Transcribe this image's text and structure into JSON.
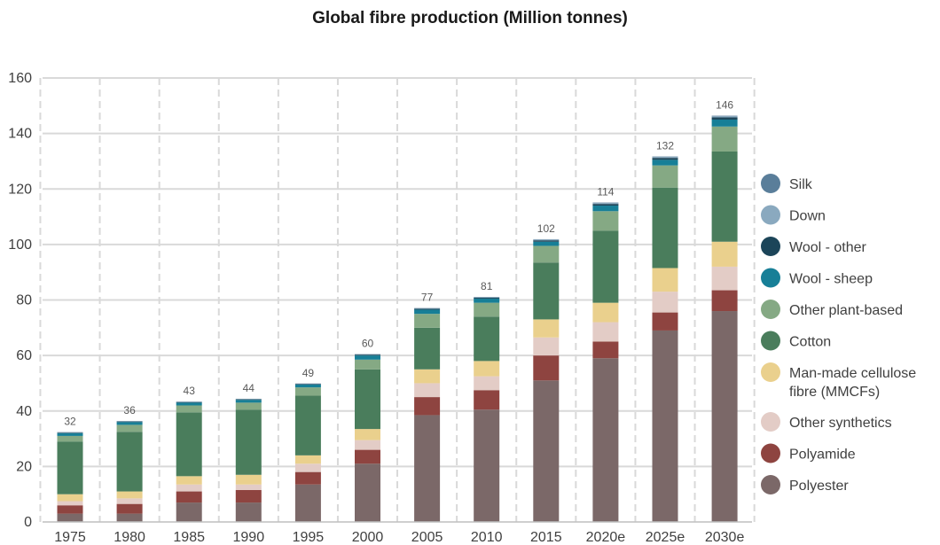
{
  "chart_data": {
    "type": "bar",
    "stacked": true,
    "title": "Global fibre production (Million tonnes)",
    "xlabel": "",
    "ylabel": "",
    "ylim": [
      0,
      160
    ],
    "yticks": [
      "0",
      "20",
      "40",
      "60",
      "80",
      "100",
      "120",
      "140",
      "160"
    ],
    "grid": true,
    "legend_position": "right",
    "categories": [
      "1975",
      "1980",
      "1985",
      "1990",
      "1995",
      "2000",
      "2005",
      "2010",
      "2015",
      "2020e",
      "2025e",
      "2030e"
    ],
    "totals": [
      "32",
      "36",
      "43",
      "44",
      "49",
      "60",
      "77",
      "81",
      "102",
      "114",
      "132",
      "146"
    ],
    "series": [
      {
        "name": "Polyester",
        "color": "#7b6868",
        "values": [
          3,
          3,
          7,
          7,
          13.5,
          21,
          38.5,
          40.5,
          51,
          59,
          69,
          76
        ]
      },
      {
        "name": "Polyamide",
        "color": "#8e4440",
        "values": [
          3,
          3.5,
          4,
          4.5,
          4.5,
          5,
          6.5,
          7,
          9,
          6,
          6.5,
          7.5
        ]
      },
      {
        "name": "Other synthetics",
        "color": "#e3ccc6",
        "values": [
          1.5,
          2,
          2.5,
          2,
          3,
          3.5,
          5,
          5,
          6.5,
          7,
          7.5,
          8.5
        ]
      },
      {
        "name": "Man-made cellulose fibre (MMCFs)",
        "color": "#ead08d",
        "values": [
          2.5,
          2.5,
          3,
          3.5,
          3,
          4,
          5,
          5.5,
          6.5,
          7,
          8.5,
          9
        ]
      },
      {
        "name": "Cotton",
        "color": "#4a7d5c",
        "values": [
          19,
          21.5,
          23,
          23.5,
          21.5,
          21.5,
          15,
          16,
          20.5,
          26,
          29,
          32.5
        ]
      },
      {
        "name": "Other plant-based",
        "color": "#85a984",
        "values": [
          2,
          2.5,
          2.5,
          2.5,
          3,
          3.5,
          5,
          5,
          6,
          7,
          8,
          9
        ]
      },
      {
        "name": "Wool - sheep",
        "color": "#177f97",
        "values": [
          1,
          1,
          1,
          1,
          1,
          1.5,
          1.5,
          1.5,
          1.5,
          2,
          2,
          2.5
        ]
      },
      {
        "name": "Wool - other",
        "color": "#1c4559",
        "values": [
          0.2,
          0.2,
          0.2,
          0.2,
          0.2,
          0.3,
          0.3,
          0.3,
          0.5,
          0.6,
          0.7,
          0.8
        ]
      },
      {
        "name": "Down",
        "color": "#8aa9bf",
        "values": [
          0.1,
          0.1,
          0.1,
          0.1,
          0.1,
          0.1,
          0.2,
          0.2,
          0.3,
          0.3,
          0.3,
          0.4
        ]
      },
      {
        "name": "Silk",
        "color": "#5a7e9a",
        "values": [
          0.1,
          0.1,
          0.1,
          0.1,
          0.1,
          0.1,
          0.1,
          0.1,
          0.1,
          0.2,
          0.2,
          0.2
        ]
      }
    ],
    "legend_order": [
      "Silk",
      "Down",
      "Wool - other",
      "Wool - sheep",
      "Other plant-based",
      "Cotton",
      "Man-made cellulose fibre (MMCFs)",
      "Other synthetics",
      "Polyamide",
      "Polyester"
    ]
  }
}
